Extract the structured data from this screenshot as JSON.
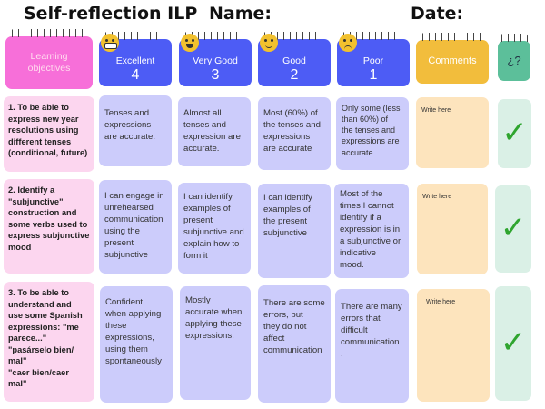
{
  "title": "Self-reflection ILP",
  "name_label": "Name:",
  "date_label": "Date:",
  "headers": {
    "objectives": "Learning\nobjectives",
    "excellent": "Excellent",
    "excellent_num": "4",
    "very_good": "Very Good",
    "very_good_num": "3",
    "good": "Good",
    "good_num": "2",
    "poor": "Poor",
    "poor_num": "1",
    "comments": "Comments",
    "question": "¿?"
  },
  "rows": [
    {
      "objective": "1. To be able to\nexpress new year\nresolutions using\ndifferent tenses\n(conditional, future)",
      "excellent": "Tenses and\nexpressions\nare accurate.",
      "very_good": "Almost all\ntenses and\nexpression are\naccurate.",
      "good": "Most (60%) of\nthe tenses and\nexpressions\nare accurate",
      "poor": "Only some (less\nthan 60%) of\nthe tenses and\nexpressions are\naccurate",
      "comment": "Write here",
      "check": "✓"
    },
    {
      "objective": "2. Identify a\n\"subjunctive\"\nconstruction and\nsome  verbs used to\nexpress subjunctive\nmood",
      "excellent": "I can engage in\nunrehearsed\ncommunication\nusing the\npresent\nsubjunctive",
      "very_good": "I can identify\n examples of\npresent\n subjunctive and\nexplain how to\nform it",
      "good": "I can identify\nexamples of\nthe present\nsubjunctive",
      "poor": "Most of the\ntimes  I cannot\nidentify if a\nexpression is in\na subjunctive or\nindicative\nmood.",
      "comment": "Write here",
      "check": "✓"
    },
    {
      "objective": "3. To be able to\nunderstand and\n use some Spanish\nexpressions: \"me\nparece...\"\n \"pasárselo bien/\nmal\"\n\"caer bien/caer\nmal\"",
      "excellent": "Confident\nwhen applying\nthese\nexpressions,\nusing them\nspontaneously",
      "very_good": "Mostly\naccurate when\napplying these\nexpressions.",
      "good": "There are some\nerrors,  but\nthey  do not\naffect\ncommunication",
      "poor": "There are many\nerrors that\ndifficult\ncommunication\n.",
      "comment": "Write here",
      "check": "✓"
    }
  ],
  "colors": {
    "pink": "#f76fd9",
    "blue": "#4d5cf5",
    "orange": "#f2bd3c",
    "teal": "#5cbf9a"
  }
}
